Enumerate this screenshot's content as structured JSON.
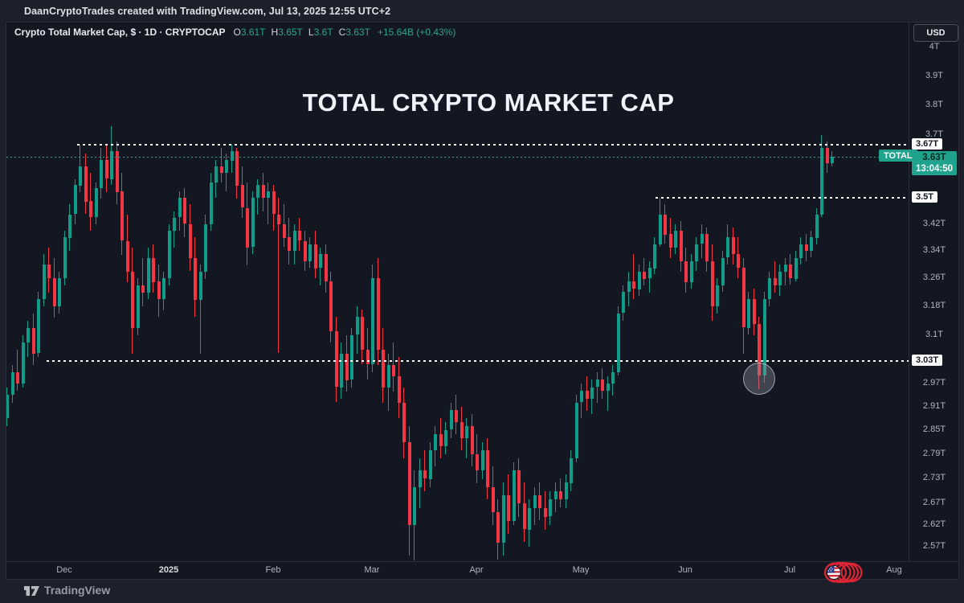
{
  "header": {
    "attribution": "DaanCryptoTrades created with TradingView.com, Jul 13, 2025 12:55 UTC+2"
  },
  "toolbar": {
    "currency_button": "USD"
  },
  "legend": {
    "symbol_title": "Crypto Total Market Cap, $ · 1D · CRYPTOCAP",
    "ohlc": [
      {
        "label": "O",
        "value": "3.61T"
      },
      {
        "label": "H",
        "value": "3.65T"
      },
      {
        "label": "L",
        "value": "3.6T"
      },
      {
        "label": "C",
        "value": "3.63T"
      }
    ],
    "change": "+15.64B (+0.43%)"
  },
  "watermark_title": "TOTAL CRYPTO MARKET CAP",
  "current_price": {
    "badge_price": "3.63T",
    "countdown": "13:04:50",
    "indicator_label": "TOTAL"
  },
  "footer": {
    "brand": "TradingView"
  },
  "icons": {
    "brand_logo": "tradingview-logo-icon",
    "flag": "us-flag-circled-scribble-icon"
  },
  "colors": {
    "background": "#131722",
    "page": "#1b202b",
    "up": "#0f9d8a",
    "down": "#f23645",
    "accent_badge": "#1fa38c",
    "level_line": "#ffffff",
    "price_line": "#2e9e8f",
    "axis_text": "#b2b5be"
  },
  "chart_data": {
    "type": "candlestick",
    "title": "TOTAL CRYPTO MARKET CAP",
    "symbol": "Crypto Total Market Cap (CRYPTOCAP)",
    "timeframe": "1D",
    "currency": "USD",
    "scale": "log",
    "grid": false,
    "y_unit": "T (trillions USD)",
    "y_range_visible": [
      2.535,
      4.05
    ],
    "y_map": {
      "p1": 4.0,
      "y1": 31,
      "p2": 2.57,
      "y2": 652
    },
    "x_map": {
      "x0": 0,
      "dx": 6.5
    },
    "y_ticks": [
      {
        "label": "4T",
        "value": 4.0
      },
      {
        "label": "3.9T",
        "value": 3.9
      },
      {
        "label": "3.8T",
        "value": 3.8
      },
      {
        "label": "3.7T",
        "value": 3.7
      },
      {
        "label": "3.42T",
        "value": 3.42
      },
      {
        "label": "3.34T",
        "value": 3.34
      },
      {
        "label": "3.26T",
        "value": 3.26
      },
      {
        "label": "3.18T",
        "value": 3.18
      },
      {
        "label": "3.1T",
        "value": 3.1
      },
      {
        "label": "2.97T",
        "value": 2.97
      },
      {
        "label": "2.91T",
        "value": 2.91
      },
      {
        "label": "2.85T",
        "value": 2.85
      },
      {
        "label": "2.79T",
        "value": 2.79
      },
      {
        "label": "2.73T",
        "value": 2.73
      },
      {
        "label": "2.67T",
        "value": 2.67
      },
      {
        "label": "2.62T",
        "value": 2.62
      },
      {
        "label": "2.57T",
        "value": 2.57
      }
    ],
    "x_ticks": [
      {
        "label": "Dec",
        "bar": 11
      },
      {
        "label": "2025",
        "bar": 31,
        "major": true
      },
      {
        "label": "Feb",
        "bar": 51
      },
      {
        "label": "Mar",
        "bar": 70
      },
      {
        "label": "Apr",
        "bar": 90
      },
      {
        "label": "May",
        "bar": 110
      },
      {
        "label": "Jun",
        "bar": 130
      },
      {
        "label": "Jul",
        "bar": 150
      },
      {
        "label": "Aug",
        "bar": 170
      }
    ],
    "levels": [
      {
        "price": 3.67,
        "label": "3.67T",
        "from_x": 88,
        "style": "white-dotted"
      },
      {
        "price": 3.5,
        "label": "3.5T",
        "from_x": 808,
        "style": "white-dotted"
      },
      {
        "price": 3.03,
        "label": "3.03T",
        "from_x": 50,
        "style": "white-dotted"
      }
    ],
    "price_line": {
      "price": 3.63,
      "style": "teal-dotted"
    },
    "annotations": {
      "circle_highlight": {
        "bar": 144,
        "price": 2.985,
        "radius": 19,
        "note": "June capitulation wick low"
      },
      "flag": "us-flag-circled-scribble"
    },
    "candles_format": [
      "open",
      "high",
      "low",
      "close"
    ],
    "candles": [
      [
        2.88,
        2.96,
        2.86,
        2.94
      ],
      [
        2.94,
        3.02,
        2.92,
        3.0
      ],
      [
        3.0,
        3.06,
        2.95,
        2.97
      ],
      [
        2.97,
        3.1,
        2.96,
        3.08
      ],
      [
        3.08,
        3.14,
        3.04,
        3.12
      ],
      [
        3.12,
        3.16,
        3.02,
        3.05
      ],
      [
        3.05,
        3.22,
        3.04,
        3.2
      ],
      [
        3.2,
        3.33,
        3.18,
        3.3
      ],
      [
        3.3,
        3.35,
        3.22,
        3.26
      ],
      [
        3.26,
        3.32,
        3.15,
        3.18
      ],
      [
        3.18,
        3.28,
        3.16,
        3.26
      ],
      [
        3.26,
        3.4,
        3.24,
        3.38
      ],
      [
        3.38,
        3.48,
        3.34,
        3.45
      ],
      [
        3.45,
        3.56,
        3.42,
        3.54
      ],
      [
        3.54,
        3.67,
        3.52,
        3.6
      ],
      [
        3.6,
        3.64,
        3.45,
        3.49
      ],
      [
        3.49,
        3.58,
        3.4,
        3.44
      ],
      [
        3.44,
        3.55,
        3.42,
        3.53
      ],
      [
        3.53,
        3.66,
        3.5,
        3.62
      ],
      [
        3.62,
        3.67,
        3.52,
        3.56
      ],
      [
        3.56,
        3.73,
        3.54,
        3.65
      ],
      [
        3.65,
        3.68,
        3.48,
        3.52
      ],
      [
        3.52,
        3.58,
        3.33,
        3.37
      ],
      [
        3.37,
        3.45,
        3.25,
        3.28
      ],
      [
        3.28,
        3.35,
        3.05,
        3.12
      ],
      [
        3.12,
        3.26,
        3.1,
        3.24
      ],
      [
        3.24,
        3.32,
        3.18,
        3.22
      ],
      [
        3.22,
        3.35,
        3.2,
        3.32
      ],
      [
        3.32,
        3.36,
        3.22,
        3.25
      ],
      [
        3.25,
        3.3,
        3.15,
        3.2
      ],
      [
        3.2,
        3.28,
        3.17,
        3.26
      ],
      [
        3.26,
        3.42,
        3.24,
        3.4
      ],
      [
        3.4,
        3.46,
        3.35,
        3.44
      ],
      [
        3.44,
        3.52,
        3.4,
        3.5
      ],
      [
        3.5,
        3.53,
        3.38,
        3.42
      ],
      [
        3.42,
        3.48,
        3.28,
        3.32
      ],
      [
        3.32,
        3.38,
        3.15,
        3.2
      ],
      [
        3.2,
        3.3,
        3.05,
        3.28
      ],
      [
        3.28,
        3.45,
        3.26,
        3.42
      ],
      [
        3.42,
        3.58,
        3.4,
        3.55
      ],
      [
        3.55,
        3.62,
        3.5,
        3.6
      ],
      [
        3.6,
        3.66,
        3.55,
        3.58
      ],
      [
        3.58,
        3.64,
        3.52,
        3.62
      ],
      [
        3.62,
        3.67,
        3.58,
        3.65
      ],
      [
        3.65,
        3.66,
        3.5,
        3.54
      ],
      [
        3.54,
        3.6,
        3.44,
        3.47
      ],
      [
        3.47,
        3.55,
        3.3,
        3.35
      ],
      [
        3.35,
        3.52,
        3.33,
        3.5
      ],
      [
        3.5,
        3.56,
        3.45,
        3.54
      ],
      [
        3.54,
        3.58,
        3.46,
        3.5
      ],
      [
        3.5,
        3.55,
        3.42,
        3.52
      ],
      [
        3.52,
        3.54,
        3.4,
        3.45
      ],
      [
        3.45,
        3.5,
        3.05,
        3.42
      ],
      [
        3.42,
        3.48,
        3.35,
        3.38
      ],
      [
        3.38,
        3.44,
        3.3,
        3.34
      ],
      [
        3.34,
        3.42,
        3.3,
        3.4
      ],
      [
        3.4,
        3.44,
        3.34,
        3.37
      ],
      [
        3.37,
        3.4,
        3.28,
        3.31
      ],
      [
        3.31,
        3.38,
        3.29,
        3.36
      ],
      [
        3.36,
        3.4,
        3.26,
        3.29
      ],
      [
        3.29,
        3.35,
        3.24,
        3.33
      ],
      [
        3.33,
        3.36,
        3.22,
        3.25
      ],
      [
        3.25,
        3.28,
        3.08,
        3.11
      ],
      [
        3.11,
        3.15,
        2.92,
        2.96
      ],
      [
        2.96,
        3.08,
        2.93,
        3.05
      ],
      [
        3.05,
        3.1,
        2.95,
        2.98
      ],
      [
        2.98,
        3.12,
        2.96,
        3.1
      ],
      [
        3.1,
        3.18,
        3.05,
        3.15
      ],
      [
        3.15,
        3.17,
        3.02,
        3.06
      ],
      [
        3.06,
        3.12,
        2.98,
        3.02
      ],
      [
        3.02,
        3.3,
        3.0,
        3.26
      ],
      [
        3.26,
        3.32,
        3.02,
        3.06
      ],
      [
        3.06,
        3.12,
        2.92,
        2.96
      ],
      [
        2.96,
        3.05,
        2.9,
        3.02
      ],
      [
        3.02,
        3.08,
        2.95,
        2.99
      ],
      [
        2.99,
        3.04,
        2.88,
        2.92
      ],
      [
        2.92,
        2.96,
        2.78,
        2.82
      ],
      [
        2.82,
        2.86,
        2.55,
        2.62
      ],
      [
        2.62,
        2.75,
        2.54,
        2.71
      ],
      [
        2.71,
        2.78,
        2.66,
        2.75
      ],
      [
        2.75,
        2.8,
        2.7,
        2.73
      ],
      [
        2.73,
        2.82,
        2.71,
        2.8
      ],
      [
        2.8,
        2.86,
        2.76,
        2.84
      ],
      [
        2.84,
        2.88,
        2.78,
        2.81
      ],
      [
        2.81,
        2.87,
        2.79,
        2.85
      ],
      [
        2.85,
        2.92,
        2.83,
        2.9
      ],
      [
        2.9,
        2.94,
        2.84,
        2.87
      ],
      [
        2.87,
        2.91,
        2.8,
        2.83
      ],
      [
        2.83,
        2.88,
        2.78,
        2.86
      ],
      [
        2.86,
        2.89,
        2.76,
        2.79
      ],
      [
        2.79,
        2.84,
        2.72,
        2.75
      ],
      [
        2.75,
        2.82,
        2.73,
        2.8
      ],
      [
        2.8,
        2.83,
        2.68,
        2.71
      ],
      [
        2.71,
        2.76,
        2.62,
        2.65
      ],
      [
        2.65,
        2.68,
        2.54,
        2.58
      ],
      [
        2.58,
        2.72,
        2.55,
        2.69
      ],
      [
        2.69,
        2.74,
        2.6,
        2.63
      ],
      [
        2.63,
        2.77,
        2.62,
        2.75
      ],
      [
        2.75,
        2.78,
        2.64,
        2.67
      ],
      [
        2.67,
        2.72,
        2.58,
        2.61
      ],
      [
        2.61,
        2.68,
        2.57,
        2.66
      ],
      [
        2.66,
        2.71,
        2.62,
        2.69
      ],
      [
        2.69,
        2.72,
        2.63,
        2.66
      ],
      [
        2.66,
        2.7,
        2.61,
        2.64
      ],
      [
        2.64,
        2.7,
        2.62,
        2.68
      ],
      [
        2.68,
        2.72,
        2.65,
        2.7
      ],
      [
        2.7,
        2.73,
        2.66,
        2.68
      ],
      [
        2.68,
        2.74,
        2.66,
        2.72
      ],
      [
        2.72,
        2.8,
        2.7,
        2.78
      ],
      [
        2.78,
        2.94,
        2.77,
        2.92
      ],
      [
        2.92,
        2.97,
        2.88,
        2.95
      ],
      [
        2.95,
        2.99,
        2.9,
        2.93
      ],
      [
        2.93,
        2.98,
        2.89,
        2.96
      ],
      [
        2.96,
        3.0,
        2.92,
        2.98
      ],
      [
        2.98,
        3.01,
        2.93,
        2.95
      ],
      [
        2.95,
        2.99,
        2.9,
        2.97
      ],
      [
        2.97,
        3.02,
        2.94,
        3.0
      ],
      [
        3.0,
        3.18,
        2.99,
        3.16
      ],
      [
        3.16,
        3.24,
        3.14,
        3.22
      ],
      [
        3.22,
        3.28,
        3.18,
        3.25
      ],
      [
        3.25,
        3.33,
        3.2,
        3.23
      ],
      [
        3.23,
        3.3,
        3.21,
        3.28
      ],
      [
        3.28,
        3.32,
        3.24,
        3.26
      ],
      [
        3.26,
        3.31,
        3.22,
        3.29
      ],
      [
        3.29,
        3.38,
        3.27,
        3.36
      ],
      [
        3.36,
        3.5,
        3.35,
        3.45
      ],
      [
        3.45,
        3.48,
        3.36,
        3.39
      ],
      [
        3.39,
        3.44,
        3.32,
        3.35
      ],
      [
        3.35,
        3.42,
        3.33,
        3.4
      ],
      [
        3.4,
        3.43,
        3.28,
        3.31
      ],
      [
        3.31,
        3.35,
        3.22,
        3.25
      ],
      [
        3.25,
        3.33,
        3.23,
        3.31
      ],
      [
        3.31,
        3.38,
        3.28,
        3.36
      ],
      [
        3.36,
        3.42,
        3.32,
        3.39
      ],
      [
        3.39,
        3.41,
        3.28,
        3.31
      ],
      [
        3.31,
        3.36,
        3.14,
        3.18
      ],
      [
        3.18,
        3.26,
        3.16,
        3.24
      ],
      [
        3.24,
        3.34,
        3.22,
        3.32
      ],
      [
        3.32,
        3.42,
        3.3,
        3.38
      ],
      [
        3.38,
        3.41,
        3.3,
        3.33
      ],
      [
        3.33,
        3.38,
        3.26,
        3.29
      ],
      [
        3.29,
        3.32,
        3.05,
        3.12
      ],
      [
        3.12,
        3.22,
        3.1,
        3.2
      ],
      [
        3.2,
        3.23,
        3.1,
        3.13
      ],
      [
        3.13,
        3.15,
        2.955,
        2.99
      ],
      [
        2.99,
        3.22,
        2.97,
        3.2
      ],
      [
        3.2,
        3.28,
        3.18,
        3.26
      ],
      [
        3.26,
        3.31,
        3.22,
        3.24
      ],
      [
        3.24,
        3.3,
        3.21,
        3.28
      ],
      [
        3.28,
        3.32,
        3.24,
        3.3
      ],
      [
        3.3,
        3.33,
        3.24,
        3.26
      ],
      [
        3.26,
        3.34,
        3.25,
        3.32
      ],
      [
        3.32,
        3.38,
        3.3,
        3.36
      ],
      [
        3.36,
        3.39,
        3.31,
        3.34
      ],
      [
        3.34,
        3.4,
        3.32,
        3.38
      ],
      [
        3.38,
        3.47,
        3.36,
        3.45
      ],
      [
        3.45,
        3.7,
        3.44,
        3.66
      ],
      [
        3.66,
        3.68,
        3.58,
        3.61
      ],
      [
        3.61,
        3.65,
        3.6,
        3.63
      ]
    ]
  }
}
